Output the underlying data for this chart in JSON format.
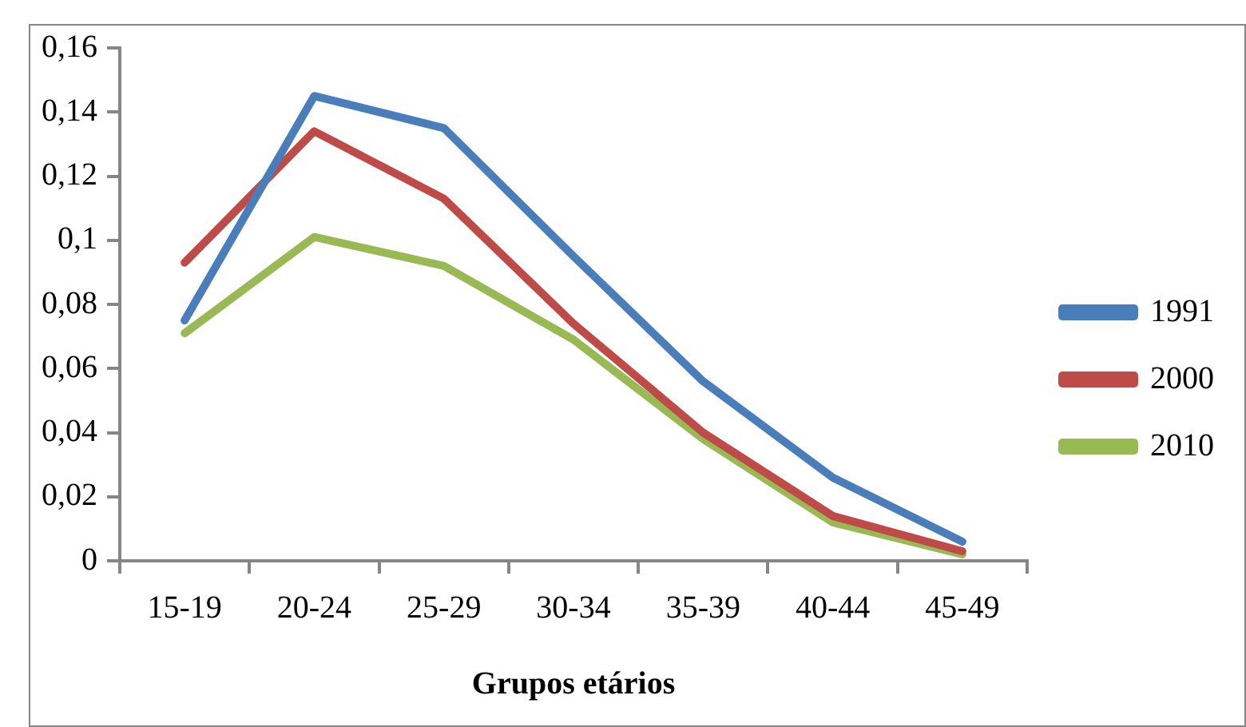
{
  "chart_data": {
    "type": "line",
    "xlabel": "Grupos etários",
    "categories": [
      "15-19",
      "20-24",
      "25-29",
      "30-34",
      "35-39",
      "40-44",
      "45-49"
    ],
    "series": [
      {
        "name": "1991",
        "color": "#4a7ebb",
        "values": [
          0.075,
          0.145,
          0.135,
          0.095,
          0.056,
          0.026,
          0.006
        ]
      },
      {
        "name": "2000",
        "color": "#be4b48",
        "values": [
          0.093,
          0.134,
          0.113,
          0.074,
          0.04,
          0.014,
          0.003
        ]
      },
      {
        "name": "2010",
        "color": "#98b954",
        "values": [
          0.071,
          0.101,
          0.092,
          0.069,
          0.038,
          0.012,
          0.002
        ]
      }
    ],
    "ylim": [
      0,
      0.16
    ],
    "yticks": [
      0,
      {
        "value": 0.02,
        "label": "0,02"
      },
      {
        "value": 0.04,
        "label": "0,04"
      },
      {
        "value": 0.06,
        "label": "0,06"
      },
      {
        "value": 0.08,
        "label": "0,08"
      },
      {
        "value": 0.1,
        "label": "0,1"
      },
      {
        "value": 0.12,
        "label": "0,12"
      },
      {
        "value": 0.14,
        "label": "0,14"
      },
      {
        "value": 0.16,
        "label": "0,16"
      }
    ],
    "grid": false,
    "legend": "right",
    "marker": "none",
    "line_style": "solid"
  }
}
